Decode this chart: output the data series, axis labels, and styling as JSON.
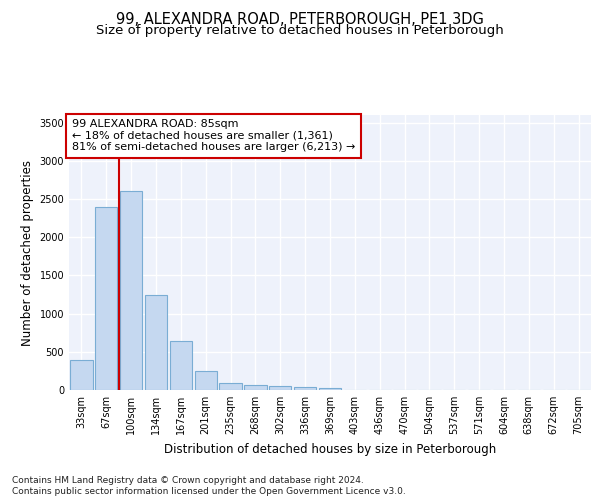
{
  "title": "99, ALEXANDRA ROAD, PETERBOROUGH, PE1 3DG",
  "subtitle": "Size of property relative to detached houses in Peterborough",
  "xlabel": "Distribution of detached houses by size in Peterborough",
  "ylabel": "Number of detached properties",
  "categories": [
    "33sqm",
    "67sqm",
    "100sqm",
    "134sqm",
    "167sqm",
    "201sqm",
    "235sqm",
    "268sqm",
    "302sqm",
    "336sqm",
    "369sqm",
    "403sqm",
    "436sqm",
    "470sqm",
    "504sqm",
    "537sqm",
    "571sqm",
    "604sqm",
    "638sqm",
    "672sqm",
    "705sqm"
  ],
  "values": [
    390,
    2400,
    2600,
    1240,
    640,
    255,
    95,
    60,
    55,
    40,
    30,
    0,
    0,
    0,
    0,
    0,
    0,
    0,
    0,
    0,
    0
  ],
  "bar_color": "#c5d8f0",
  "bar_edgecolor": "#7aadd4",
  "bar_linewidth": 0.8,
  "vline_x": 1.5,
  "vline_color": "#cc0000",
  "vline_linewidth": 1.5,
  "annotation_text": "99 ALEXANDRA ROAD: 85sqm\n← 18% of detached houses are smaller (1,361)\n81% of semi-detached houses are larger (6,213) →",
  "annotation_box_edgecolor": "#cc0000",
  "annotation_box_facecolor": "#ffffff",
  "ylim": [
    0,
    3600
  ],
  "yticks": [
    0,
    500,
    1000,
    1500,
    2000,
    2500,
    3000,
    3500
  ],
  "background_color": "#eef2fb",
  "grid_color": "#ffffff",
  "footer_line1": "Contains HM Land Registry data © Crown copyright and database right 2024.",
  "footer_line2": "Contains public sector information licensed under the Open Government Licence v3.0.",
  "title_fontsize": 10.5,
  "subtitle_fontsize": 9.5,
  "xlabel_fontsize": 8.5,
  "ylabel_fontsize": 8.5,
  "tick_fontsize": 7,
  "annotation_fontsize": 8,
  "footer_fontsize": 6.5
}
